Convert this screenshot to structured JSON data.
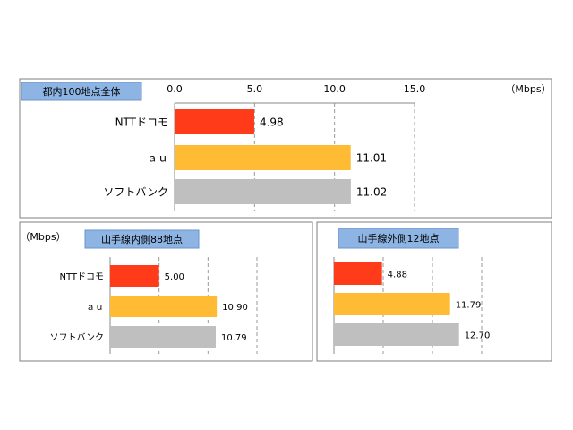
{
  "chart_data": [
    {
      "type": "bar",
      "orientation": "horizontal",
      "title": "都内100地点全体",
      "unit_label": "（Mbps）",
      "categories": [
        "NTTドコモ",
        "ａｕ",
        "ソフトバンク"
      ],
      "values": [
        4.98,
        11.01,
        11.02
      ],
      "colors": [
        "#ff3b1a",
        "#ffbb33",
        "#bfbfbf"
      ],
      "xlim": [
        0,
        15
      ],
      "xticks": [
        {
          "value": 0,
          "label": "0.0"
        },
        {
          "value": 5,
          "label": "5.0"
        },
        {
          "value": 10,
          "label": "10.0"
        },
        {
          "value": 15,
          "label": "15.0"
        }
      ],
      "tick_labels": true,
      "grid": true
    },
    {
      "type": "bar",
      "orientation": "horizontal",
      "title": "山手線内側88地点",
      "unit_label": "（Mbps）",
      "categories": [
        "NTTドコモ",
        "ａｕ",
        "ソフトバンク"
      ],
      "values": [
        5.0,
        10.9,
        10.79
      ],
      "value_labels": [
        "5.00",
        "10.90",
        "10.79"
      ],
      "colors": [
        "#ff3b1a",
        "#ffbb33",
        "#bfbfbf"
      ],
      "xlim": [
        0,
        15
      ],
      "xticks": [
        0,
        5,
        10,
        15
      ],
      "tick_labels": false,
      "grid": true
    },
    {
      "type": "bar",
      "orientation": "horizontal",
      "title": "山手線外側12地点",
      "values": [
        4.88,
        11.79,
        12.7
      ],
      "value_labels": [
        "4.88",
        "11.79",
        "12.70"
      ],
      "colors": [
        "#ff3b1a",
        "#ffbb33",
        "#bfbfbf"
      ],
      "xlim": [
        0,
        15
      ],
      "xticks": [
        0,
        5,
        10,
        15
      ],
      "tick_labels": false,
      "grid": true
    }
  ]
}
